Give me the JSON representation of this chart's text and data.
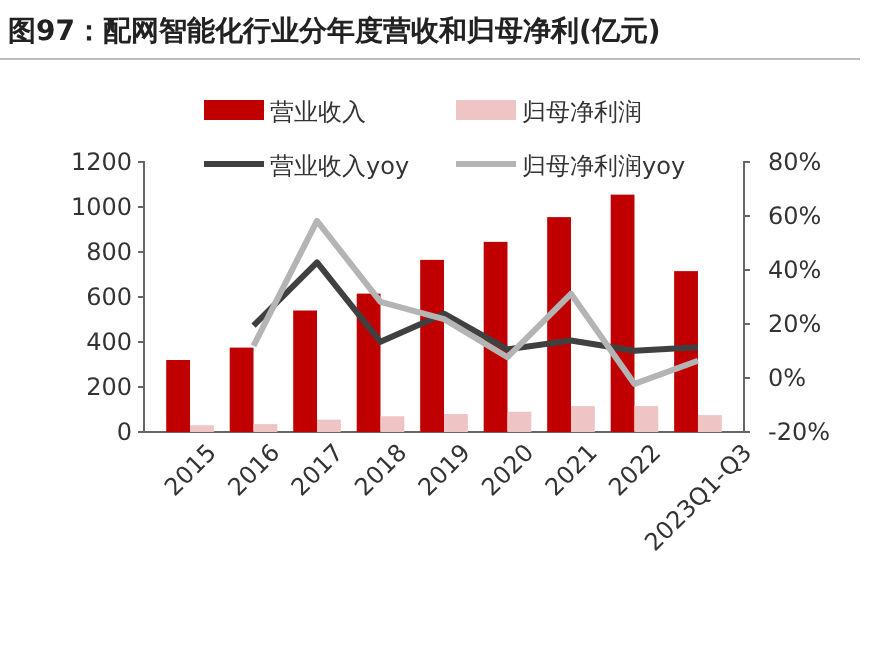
{
  "chart_data": {
    "type": "bar",
    "title": "图97：配网智能化行业分年度营收和归母净利(亿元)",
    "categories": [
      "2015",
      "2016",
      "2017",
      "2018",
      "2019",
      "2020",
      "2021",
      "2022",
      "2023Q1-Q3"
    ],
    "series": [
      {
        "name": "营业收入",
        "type": "bar",
        "color": "#c00000",
        "values": [
          320,
          375,
          540,
          615,
          765,
          845,
          955,
          1055,
          715
        ]
      },
      {
        "name": "归母净利润",
        "type": "bar",
        "color": "#efc4c4",
        "values": [
          30,
          35,
          55,
          70,
          80,
          90,
          115,
          115,
          75
        ]
      },
      {
        "name": "营业收入yoy",
        "type": "line",
        "axis": "y2",
        "color": "#404040",
        "values": [
          null,
          19.4,
          42.8,
          13.4,
          23.8,
          10.6,
          13.9,
          10.1,
          11.4
        ]
      },
      {
        "name": "归母净利润yoy",
        "type": "line",
        "axis": "y2",
        "color": "#b4b4b4",
        "values": [
          null,
          11.9,
          58.2,
          28.2,
          21.8,
          7.7,
          31.2,
          -2.2,
          6.4
        ]
      }
    ],
    "ylim": [
      0,
      1200
    ],
    "yticks": [
      0,
      200,
      400,
      600,
      800,
      1000,
      1200
    ],
    "y2lim": [
      -20,
      80
    ],
    "y2ticks": [
      {
        "value": -20,
        "label": "-20%"
      },
      {
        "value": 0,
        "label": "0%"
      },
      {
        "value": 20,
        "label": "20%"
      },
      {
        "value": 40,
        "label": "40%"
      },
      {
        "value": 60,
        "label": "60%"
      },
      {
        "value": 80,
        "label": "80%"
      }
    ],
    "legend": "top",
    "grid": false
  }
}
